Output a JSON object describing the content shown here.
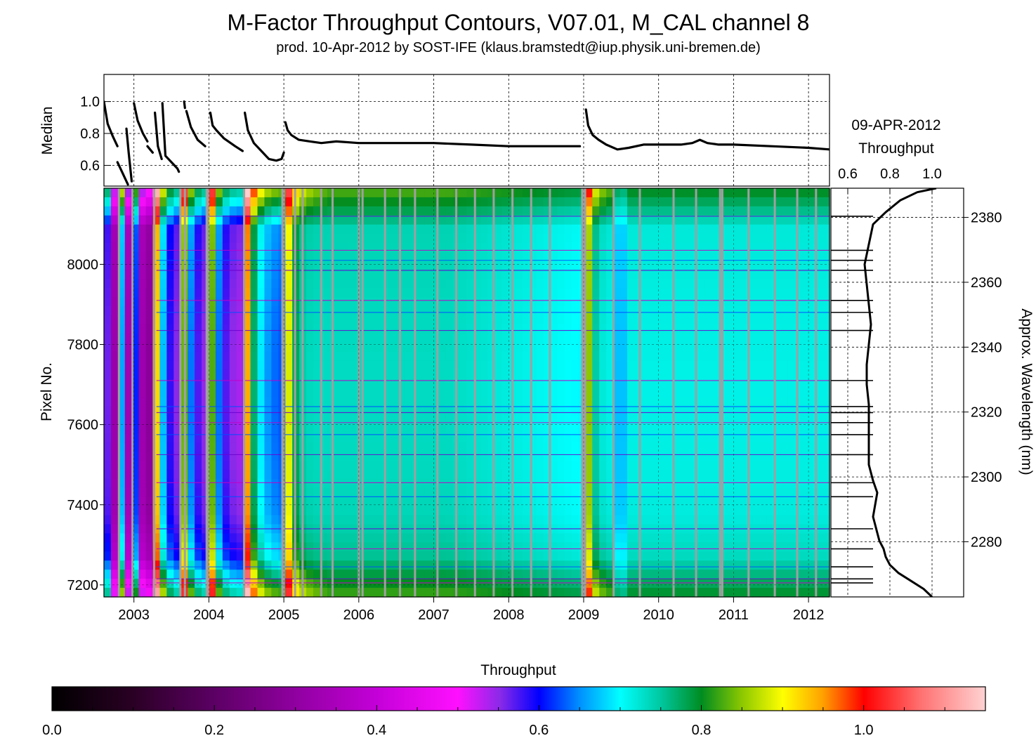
{
  "title": "M-Factor Throughput Contours, V07.01, M_CAL channel 8",
  "subtitle": "prod. 10-Apr-2012 by SOST-IFE (klaus.bramstedt@iup.physik.uni-bremen.de)",
  "chart_data": [
    {
      "type": "line",
      "id": "median-panel",
      "ylabel": "Median",
      "xlim": [
        2002.6,
        2012.28
      ],
      "ylim": [
        0.47,
        1.17
      ],
      "yticks": [
        0.6,
        0.8,
        1.0
      ],
      "ytick_labels": [
        "0.6",
        "0.8",
        "1.0"
      ],
      "grid": true,
      "segments": [
        {
          "x": [
            2002.6,
            2002.65,
            2002.72,
            2002.78
          ],
          "y": [
            1.0,
            0.86,
            0.78,
            0.72
          ]
        },
        {
          "x": [
            2002.78,
            2002.85,
            2002.92
          ],
          "y": [
            0.62,
            0.55,
            0.48
          ]
        },
        {
          "x": [
            2002.9,
            2002.93,
            2002.97
          ],
          "y": [
            0.83,
            0.68,
            0.5
          ]
        },
        {
          "x": [
            2003.0,
            2003.05,
            2003.12,
            2003.18
          ],
          "y": [
            0.99,
            0.88,
            0.8,
            0.75
          ]
        },
        {
          "x": [
            2003.18,
            2003.25
          ],
          "y": [
            0.72,
            0.68
          ]
        },
        {
          "x": [
            2003.28,
            2003.32,
            2003.37
          ],
          "y": [
            0.93,
            0.72,
            0.64
          ]
        },
        {
          "x": [
            2003.38,
            2003.42,
            2003.5,
            2003.58,
            2003.6
          ],
          "y": [
            0.99,
            0.66,
            0.62,
            0.58,
            0.56
          ]
        },
        {
          "x": [
            2003.67,
            2003.68
          ],
          "y": [
            1.0,
            0.96
          ]
        },
        {
          "x": [
            2003.7,
            2003.76,
            2003.85,
            2003.95
          ],
          "y": [
            0.94,
            0.84,
            0.76,
            0.72
          ]
        },
        {
          "x": [
            2004.02,
            2004.05,
            2004.1,
            2004.2,
            2004.35,
            2004.45
          ],
          "y": [
            0.93,
            0.85,
            0.82,
            0.77,
            0.72,
            0.69
          ]
        },
        {
          "x": [
            2004.48,
            2004.52,
            2004.6,
            2004.7,
            2004.8,
            2004.9,
            2004.97,
            2005.0
          ],
          "y": [
            0.93,
            0.82,
            0.74,
            0.69,
            0.64,
            0.63,
            0.64,
            0.68
          ]
        },
        {
          "x": [
            2005.02,
            2005.05,
            2005.1,
            2005.2,
            2005.35,
            2005.5,
            2005.7,
            2006.0,
            2006.5,
            2007.0,
            2007.5,
            2008.0,
            2008.5,
            2008.95
          ],
          "y": [
            0.87,
            0.82,
            0.79,
            0.76,
            0.75,
            0.74,
            0.75,
            0.74,
            0.74,
            0.74,
            0.73,
            0.72,
            0.72,
            0.72
          ]
        },
        {
          "x": [
            2009.03,
            2009.06,
            2009.12,
            2009.2,
            2009.3,
            2009.45,
            2009.6,
            2009.8,
            2010.0,
            2010.3,
            2010.45,
            2010.55,
            2010.65,
            2010.8,
            2011.0,
            2011.5,
            2012.0,
            2012.28
          ],
          "y": [
            0.95,
            0.85,
            0.79,
            0.76,
            0.73,
            0.7,
            0.71,
            0.73,
            0.73,
            0.73,
            0.74,
            0.76,
            0.74,
            0.73,
            0.73,
            0.72,
            0.71,
            0.7
          ]
        }
      ]
    },
    {
      "type": "heatmap",
      "id": "contour-panel",
      "ylabel": "Pixel No.",
      "right_ylabel": "Approx. Wavelength (nm)",
      "xlim": [
        2002.6,
        2012.28
      ],
      "ylim": [
        7170,
        8190
      ],
      "x_tick_labels": [
        "2003",
        "2004",
        "2005",
        "2006",
        "2007",
        "2008",
        "2009",
        "2010",
        "2011",
        "2012"
      ],
      "x_tick_values": [
        2003,
        2004,
        2005,
        2006,
        2007,
        2008,
        2009,
        2010,
        2011,
        2012
      ],
      "y_tick_labels": [
        "7200",
        "7400",
        "7600",
        "7800",
        "8000"
      ],
      "y_tick_values": [
        7200,
        7400,
        7600,
        7800,
        8000
      ],
      "wavelength_tick_labels": [
        "2280",
        "2300",
        "2320",
        "2340",
        "2360",
        "2380"
      ],
      "wavelength_tick_values": [
        2280,
        2300,
        2320,
        2340,
        2360,
        2380
      ],
      "wavelength_range": [
        2263,
        2389
      ],
      "value_range": [
        0.0,
        1.15
      ],
      "gaps_years": [
        2002.8,
        2002.98,
        2003.27,
        2003.62,
        2003.68,
        2003.97,
        2003.99,
        2004.47,
        2004.98,
        2005.0,
        2005.15,
        2005.25,
        2005.5,
        2005.65,
        2006.0,
        2006.05,
        2006.35,
        2006.55,
        2006.75,
        2007.05,
        2007.3,
        2007.55,
        2007.8,
        2008.05,
        2008.3,
        2008.55,
        2008.98,
        2009.0,
        2009.02,
        2009.4,
        2009.75,
        2010.2,
        2010.5,
        2010.82,
        2010.85,
        2011.2,
        2011.55,
        2011.85,
        2012.1
      ]
    },
    {
      "type": "line",
      "id": "throughput-profile",
      "date_label": "09-APR-2012",
      "xlabel": "Throughput",
      "xlim": [
        0.52,
        1.15
      ],
      "x_tick_labels": [
        "0.6",
        "0.8",
        "1.0"
      ],
      "x_tick_values": [
        0.6,
        0.8,
        1.0
      ],
      "ylim": [
        7170,
        8190
      ],
      "pixels": [
        7170,
        7190,
        7210,
        7230,
        7250,
        7270,
        7290,
        7310,
        7330,
        7350,
        7370,
        7400,
        7430,
        7460,
        7500,
        7550,
        7600,
        7650,
        7700,
        7750,
        7800,
        7850,
        7900,
        7950,
        8000,
        8050,
        8100,
        8130,
        8160,
        8180,
        8190
      ],
      "throughput": [
        1.0,
        0.96,
        0.9,
        0.84,
        0.8,
        0.78,
        0.77,
        0.75,
        0.74,
        0.73,
        0.72,
        0.73,
        0.74,
        0.72,
        0.7,
        0.7,
        0.7,
        0.7,
        0.69,
        0.69,
        0.7,
        0.71,
        0.7,
        0.69,
        0.68,
        0.7,
        0.72,
        0.78,
        0.85,
        0.93,
        1.02
      ]
    },
    {
      "type": "colorbar",
      "id": "throughput-colorbar",
      "label": "Throughput",
      "range": [
        0.0,
        1.15
      ],
      "tick_labels": [
        "0.0",
        "0.2",
        "0.4",
        "0.6",
        "0.8",
        "1.0"
      ],
      "tick_values": [
        0.0,
        0.2,
        0.4,
        0.6,
        0.8,
        1.0
      ]
    }
  ]
}
